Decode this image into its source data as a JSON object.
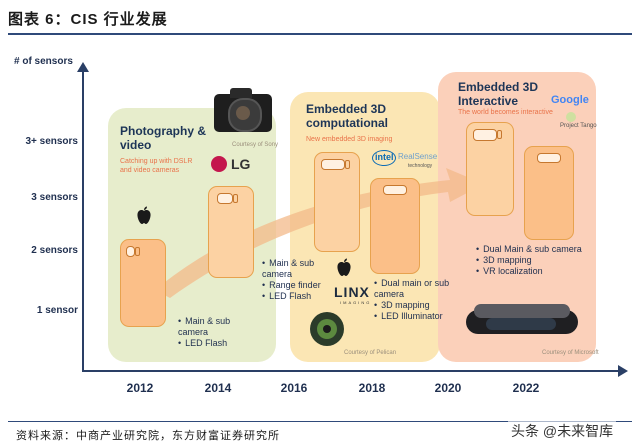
{
  "figure": {
    "title": "图表 6：CIS 行业发展",
    "source": "资料来源：中商产业研究院，东方财富证券研究所",
    "watermark": "头条 @未来智库"
  },
  "axes": {
    "y_title": "# of sensors",
    "y_levels": [
      "3+ sensors",
      "3 sensors",
      "2 sensors",
      "1 sensor"
    ],
    "x_years": [
      "2012",
      "2014",
      "2016",
      "2018",
      "2020",
      "2022"
    ]
  },
  "stages": [
    {
      "title": "Photography & video",
      "subtitle": "Catching up with DSLR and video cameras",
      "courtesy": "Courtesy of Sony",
      "groups": [
        {
          "bullets": [
            "Main & sub camera",
            "LED Flash"
          ]
        },
        {
          "bullets": [
            "Main & sub camera",
            "Range finder",
            "LED Flash"
          ]
        }
      ],
      "brand_lg": "LG"
    },
    {
      "title": "Embedded 3D computational",
      "subtitle": "New embedded 3D imaging",
      "brand_intel": "intel",
      "brand_realsense": "RealSense",
      "brand_realsense_sub": "technology",
      "brand_linx": "LINX",
      "brand_linx_sub": "IMAGING",
      "courtesy": "Courtesy of Pelican",
      "bullets": [
        "Dual main or sub camera",
        "3D mapping",
        "LED Illuminator"
      ]
    },
    {
      "title": "Embedded 3D Interactive",
      "subtitle": "The world becomes interactive",
      "brand_google": "Google",
      "brand_tango": "Project Tango",
      "courtesy": "Courtesy of Microsoft",
      "bullets": [
        "Dual Main & sub camera",
        "3D mapping",
        "VR localization"
      ]
    }
  ],
  "colors": {
    "stage1": "#e6ecc9",
    "stage2": "#fbe6b4",
    "stage3": "#fbd0ba",
    "arrow": "#f3b98a",
    "text": "#1d3557"
  }
}
